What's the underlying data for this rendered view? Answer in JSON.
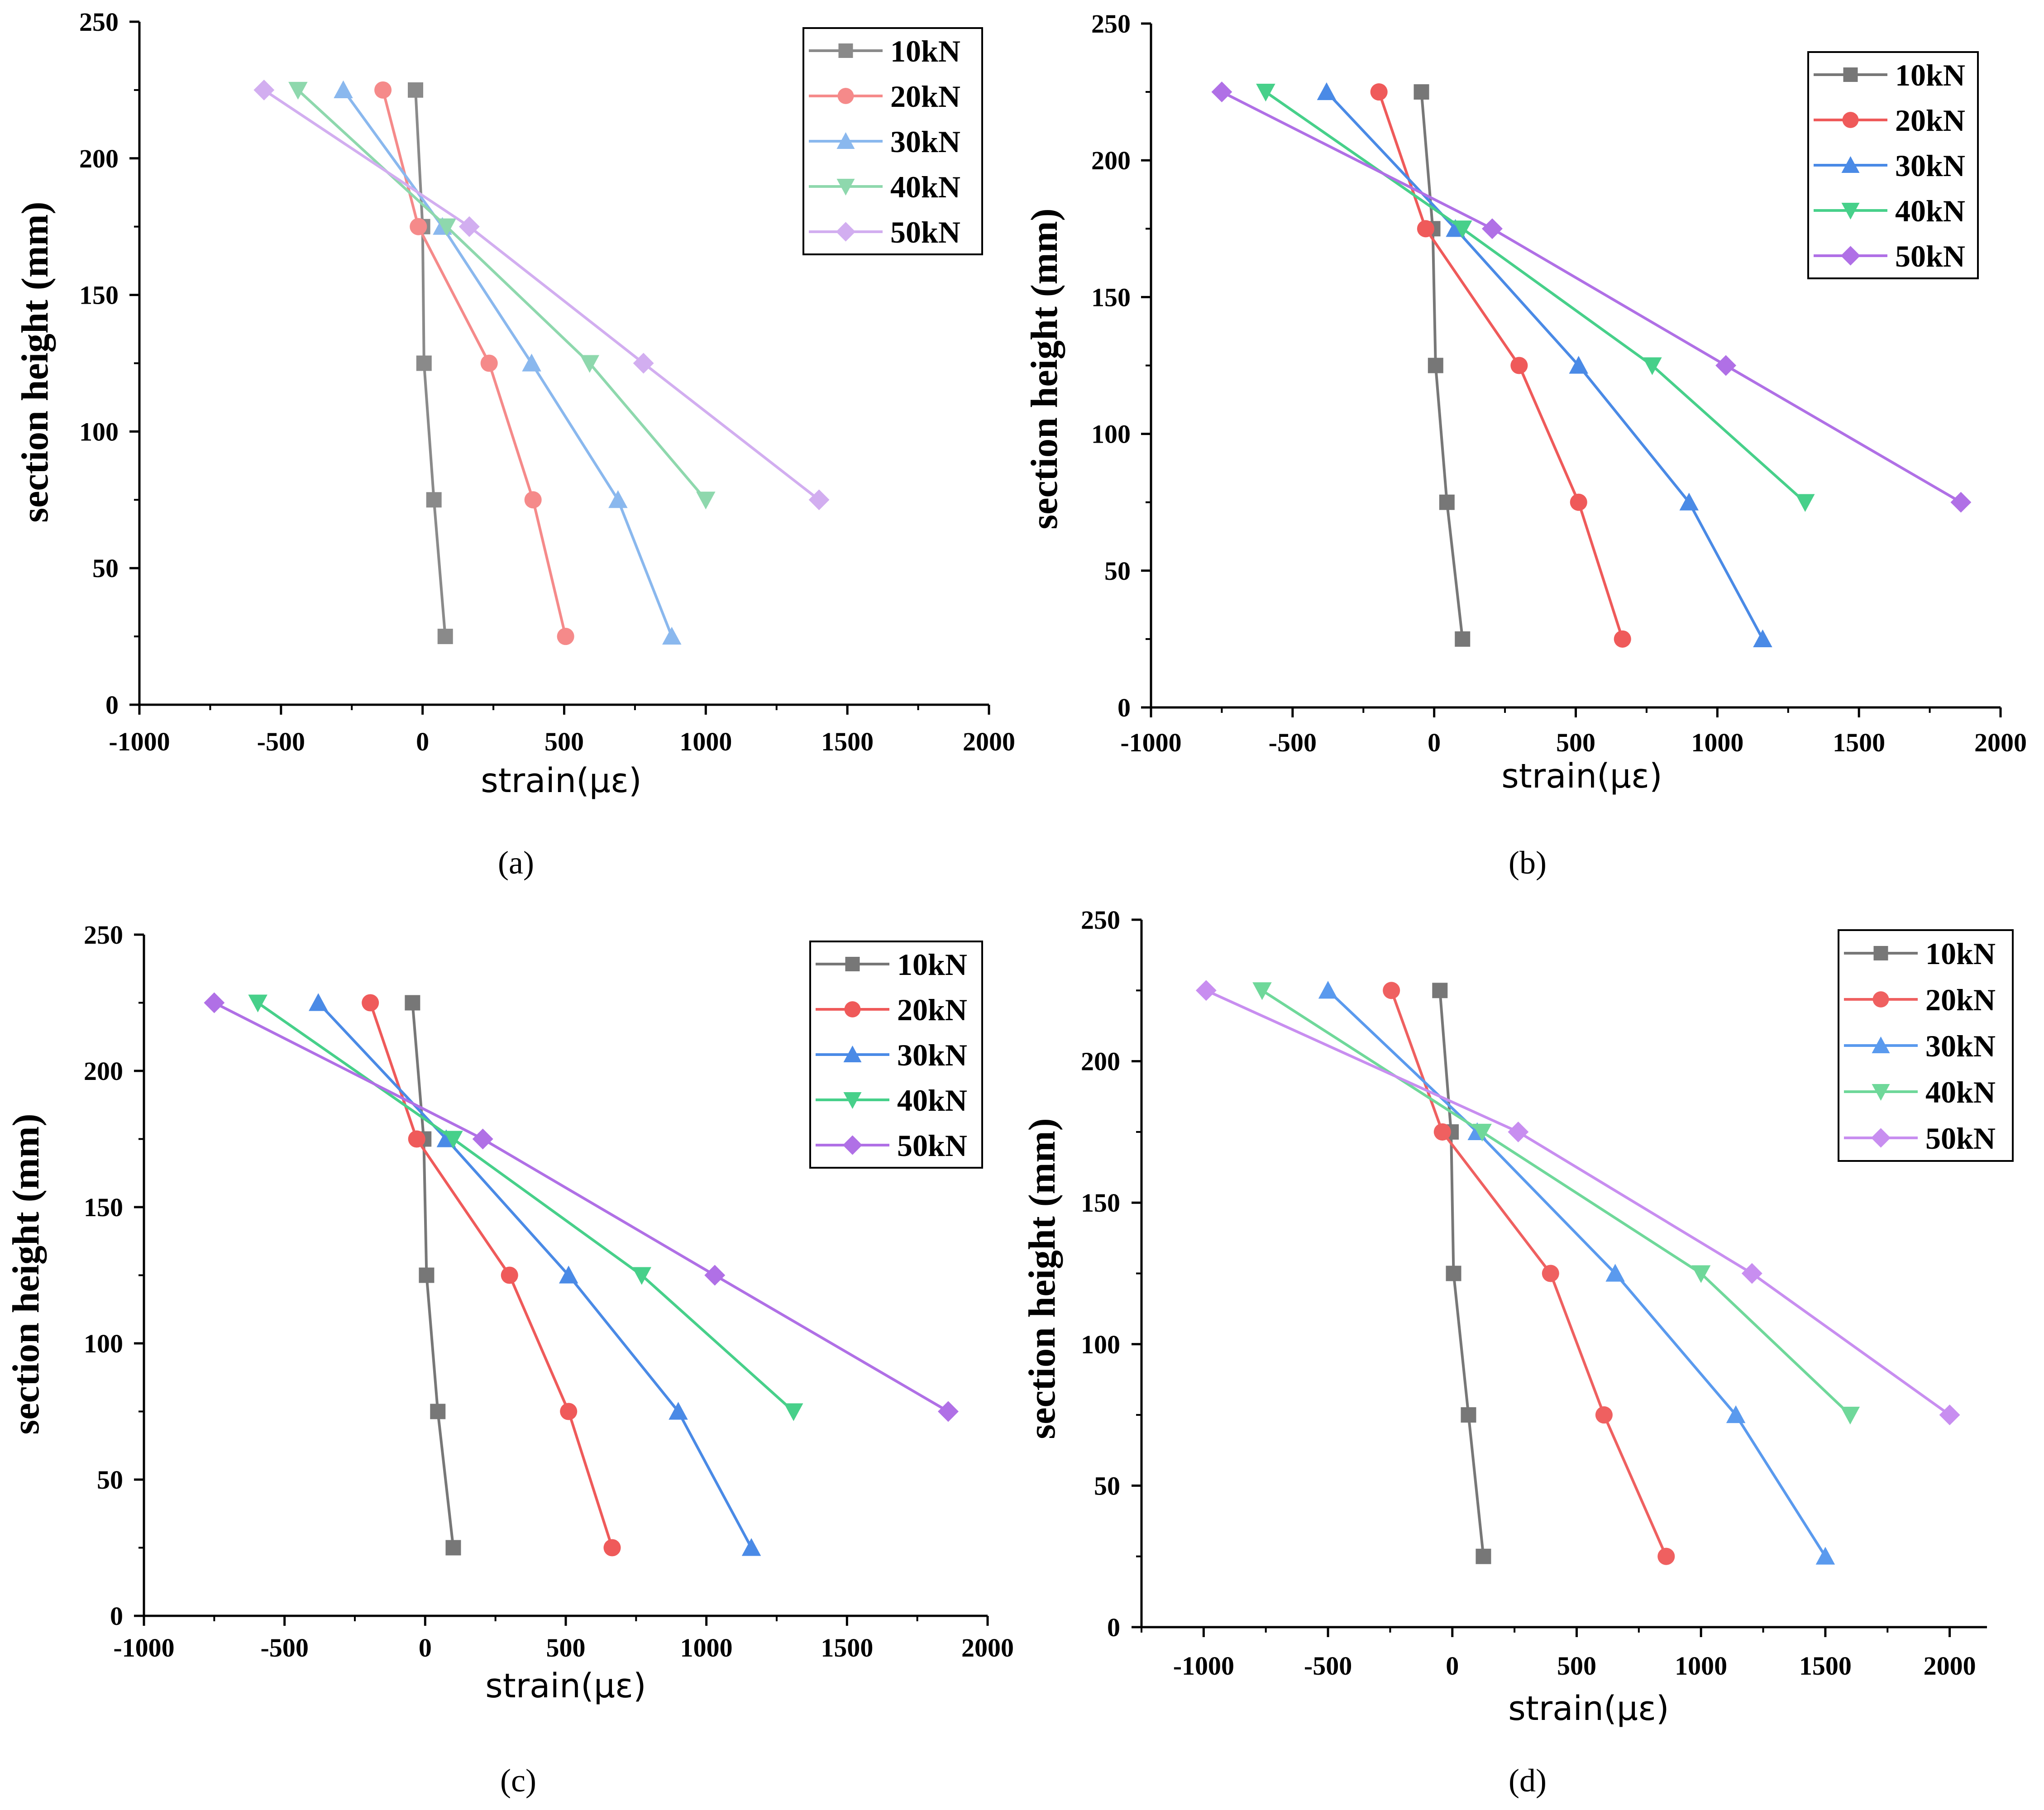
{
  "figure": {
    "panels": [
      {
        "id": "a",
        "label": "(a)"
      },
      {
        "id": "b",
        "label": "(b)"
      },
      {
        "id": "c",
        "label": "(c)"
      },
      {
        "id": "d",
        "label": "(d)"
      }
    ]
  },
  "chart_data": [
    {
      "type": "line",
      "panel_label": "(a)",
      "xlabel": "strain(με)",
      "ylabel": "section height (mm)",
      "xlim": [
        -1000,
        2000
      ],
      "ylim": [
        0,
        250
      ],
      "xticks": [
        -1000,
        -500,
        0,
        500,
        1000,
        1500,
        2000
      ],
      "yticks": [
        0,
        50,
        100,
        150,
        200,
        250
      ],
      "legend_position": "top-right",
      "y": [
        225,
        175,
        125,
        75,
        25
      ],
      "series": [
        {
          "name": "10kN",
          "color": "#8a8a8a",
          "marker": "square",
          "x": [
            -25,
            0,
            5,
            40,
            80
          ]
        },
        {
          "name": "20kN",
          "color": "#f58a8a",
          "marker": "circle",
          "x": [
            -140,
            -15,
            235,
            390,
            505
          ]
        },
        {
          "name": "30kN",
          "color": "#8ab8ee",
          "marker": "triangle-up",
          "x": [
            -280,
            70,
            385,
            690,
            880
          ]
        },
        {
          "name": "40kN",
          "color": "#8ed8ad",
          "marker": "triangle-down",
          "x": [
            -440,
            85,
            590,
            1000
          ]
        },
        {
          "name": "50kN",
          "color": "#d2aef0",
          "marker": "diamond",
          "x": [
            -560,
            165,
            780,
            1400
          ]
        }
      ]
    },
    {
      "type": "line",
      "panel_label": "(b)",
      "xlabel": "strain(με)",
      "ylabel": "section height (mm)",
      "xlim": [
        -1000,
        2000
      ],
      "ylim": [
        0,
        250
      ],
      "xticks": [
        -1000,
        -500,
        0,
        500,
        1000,
        1500,
        2000
      ],
      "yticks": [
        0,
        50,
        100,
        150,
        200,
        250
      ],
      "legend_position": "top-right",
      "y": [
        225,
        175,
        125,
        75,
        25
      ],
      "series": [
        {
          "name": "10kN",
          "color": "#777777",
          "marker": "square",
          "x": [
            -45,
            -5,
            5,
            45,
            100
          ]
        },
        {
          "name": "20kN",
          "color": "#ef5a5a",
          "marker": "circle",
          "x": [
            -195,
            -30,
            300,
            510,
            665
          ]
        },
        {
          "name": "30kN",
          "color": "#4a8ae6",
          "marker": "triangle-up",
          "x": [
            -380,
            75,
            510,
            900,
            1160
          ]
        },
        {
          "name": "40kN",
          "color": "#47d08a",
          "marker": "triangle-down",
          "x": [
            -595,
            100,
            770,
            1310
          ]
        },
        {
          "name": "50kN",
          "color": "#b070e6",
          "marker": "diamond",
          "x": [
            -750,
            205,
            1030,
            1860
          ]
        }
      ]
    },
    {
      "type": "line",
      "panel_label": "(c)",
      "xlabel": "strain(με)",
      "ylabel": "section height (mm)",
      "xlim": [
        -1000,
        2000
      ],
      "ylim": [
        0,
        250
      ],
      "xticks": [
        -1000,
        -500,
        0,
        500,
        1000,
        1500,
        2000
      ],
      "yticks": [
        0,
        50,
        100,
        150,
        200,
        250
      ],
      "legend_position": "top-right",
      "y": [
        225,
        175,
        125,
        75,
        25
      ],
      "series": [
        {
          "name": "10kN",
          "color": "#777777",
          "marker": "square",
          "x": [
            -45,
            -5,
            5,
            45,
            100
          ]
        },
        {
          "name": "20kN",
          "color": "#ef5a5a",
          "marker": "circle",
          "x": [
            -195,
            -30,
            300,
            510,
            665
          ]
        },
        {
          "name": "30kN",
          "color": "#4a8ae6",
          "marker": "triangle-up",
          "x": [
            -380,
            75,
            510,
            900,
            1160
          ]
        },
        {
          "name": "40kN",
          "color": "#47d08a",
          "marker": "triangle-down",
          "x": [
            -595,
            100,
            770,
            1310
          ]
        },
        {
          "name": "50kN",
          "color": "#b070e6",
          "marker": "diamond",
          "x": [
            -750,
            205,
            1030,
            1860
          ]
        }
      ]
    },
    {
      "type": "line",
      "panel_label": "(d)",
      "xlabel": "strain(με)",
      "ylabel": "section height (mm)",
      "xlim": [
        -1250,
        2150
      ],
      "ylim": [
        0,
        250
      ],
      "xticks": [
        -1000,
        -500,
        0,
        500,
        1000,
        1500,
        2000
      ],
      "yticks": [
        0,
        50,
        100,
        150,
        200,
        250
      ],
      "legend_position": "top-right",
      "y": [
        225,
        175,
        125,
        75,
        25
      ],
      "series": [
        {
          "name": "10kN",
          "color": "#777777",
          "marker": "square",
          "x": [
            -50,
            -5,
            5,
            65,
            125
          ]
        },
        {
          "name": "20kN",
          "color": "#ef6060",
          "marker": "circle",
          "x": [
            -245,
            -40,
            395,
            610,
            860
          ]
        },
        {
          "name": "30kN",
          "color": "#5a9aee",
          "marker": "triangle-up",
          "x": [
            -500,
            100,
            655,
            1140,
            1500
          ]
        },
        {
          "name": "40kN",
          "color": "#6fd89a",
          "marker": "triangle-down",
          "x": [
            -765,
            120,
            1000,
            1600
          ]
        },
        {
          "name": "50kN",
          "color": "#c88ef0",
          "marker": "diamond",
          "x": [
            -990,
            265,
            1205,
            2000
          ]
        }
      ]
    }
  ]
}
